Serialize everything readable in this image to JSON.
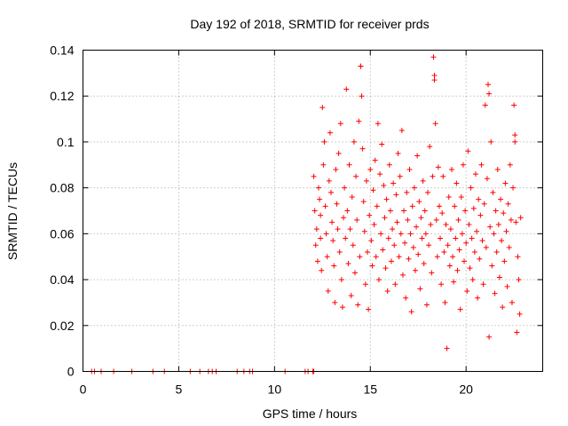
{
  "chart_data": {
    "type": "scatter",
    "title": "Day 192 of 2018, SRMTID for receiver prds",
    "xlabel": "GPS time / hours",
    "ylabel": "SRMTID / TECUs",
    "xlim": [
      0,
      24
    ],
    "ylim": [
      0,
      0.14
    ],
    "xticks": [
      0,
      5,
      10,
      15,
      20
    ],
    "xtick_labels": [
      "0",
      "5",
      "10",
      "15",
      "20"
    ],
    "yticks": [
      0,
      0.02,
      0.04,
      0.06,
      0.08,
      0.1,
      0.12,
      0.14
    ],
    "ytick_labels": [
      "0",
      "0.02",
      "0.04",
      "0.06",
      "0.08",
      "0.1",
      "0.12",
      "0.14"
    ],
    "grid": true,
    "marker": "+",
    "color": "#ff0000",
    "series": [
      {
        "name": "SRMTID",
        "points": [
          [
            0.45,
            0
          ],
          [
            0.6,
            0
          ],
          [
            0.95,
            0
          ],
          [
            1.6,
            0
          ],
          [
            2.55,
            0
          ],
          [
            3.65,
            0
          ],
          [
            4.25,
            0
          ],
          [
            5.6,
            0
          ],
          [
            6.1,
            0
          ],
          [
            6.55,
            0
          ],
          [
            6.75,
            0
          ],
          [
            6.95,
            0
          ],
          [
            8.05,
            0
          ],
          [
            8.4,
            0
          ],
          [
            8.7,
            0
          ],
          [
            8.85,
            0
          ],
          [
            10.55,
            0
          ],
          [
            11.6,
            0
          ],
          [
            11.75,
            0
          ],
          [
            12.0,
            0
          ],
          [
            12.05,
            0
          ],
          [
            12.05,
            0.085
          ],
          [
            12.1,
            0.07
          ],
          [
            12.15,
            0.055
          ],
          [
            12.2,
            0.062
          ],
          [
            12.25,
            0.048
          ],
          [
            12.3,
            0.08
          ],
          [
            12.35,
            0.075
          ],
          [
            12.4,
            0.068
          ],
          [
            12.4,
            0.058
          ],
          [
            12.45,
            0.044
          ],
          [
            12.5,
            0.115
          ],
          [
            12.55,
            0.09
          ],
          [
            12.6,
            0.1
          ],
          [
            12.65,
            0.072
          ],
          [
            12.7,
            0.06
          ],
          [
            12.75,
            0.05
          ],
          [
            12.8,
            0.035
          ],
          [
            12.85,
            0.083
          ],
          [
            12.9,
            0.104
          ],
          [
            12.95,
            0.078
          ],
          [
            13.0,
            0.065
          ],
          [
            13.05,
            0.057
          ],
          [
            13.1,
            0.046
          ],
          [
            13.15,
            0.03
          ],
          [
            13.2,
            0.088
          ],
          [
            13.25,
            0.073
          ],
          [
            13.3,
            0.062
          ],
          [
            13.35,
            0.095
          ],
          [
            13.4,
            0.052
          ],
          [
            13.45,
            0.108
          ],
          [
            13.5,
            0.04
          ],
          [
            13.55,
            0.028
          ],
          [
            13.6,
            0.067
          ],
          [
            13.65,
            0.08
          ],
          [
            13.7,
            0.058
          ],
          [
            13.75,
            0.123
          ],
          [
            13.8,
            0.07
          ],
          [
            13.85,
            0.047
          ],
          [
            13.9,
            0.09
          ],
          [
            13.95,
            0.062
          ],
          [
            14.0,
            0.033
          ],
          [
            14.05,
            0.076
          ],
          [
            14.1,
            0.055
          ],
          [
            14.15,
            0.1
          ],
          [
            14.2,
            0.043
          ],
          [
            14.25,
            0.085
          ],
          [
            14.3,
            0.066
          ],
          [
            14.35,
            0.029
          ],
          [
            14.4,
            0.109
          ],
          [
            14.45,
            0.05
          ],
          [
            14.5,
            0.133
          ],
          [
            14.5,
            0.133
          ],
          [
            14.55,
            0.12
          ],
          [
            14.6,
            0.097
          ],
          [
            14.65,
            0.074
          ],
          [
            14.7,
            0.061
          ],
          [
            14.75,
            0.038
          ],
          [
            14.8,
            0.083
          ],
          [
            14.85,
            0.052
          ],
          [
            14.9,
            0.027
          ],
          [
            14.95,
            0.068
          ],
          [
            15.0,
            0.088
          ],
          [
            15.05,
            0.057
          ],
          [
            15.1,
            0.046
          ],
          [
            15.15,
            0.079
          ],
          [
            15.2,
            0.064
          ],
          [
            15.25,
            0.092
          ],
          [
            15.3,
            0.05
          ],
          [
            15.35,
            0.072
          ],
          [
            15.4,
            0.108
          ],
          [
            15.45,
            0.04
          ],
          [
            15.5,
            0.086
          ],
          [
            15.55,
            0.06
          ],
          [
            15.6,
            0.099
          ],
          [
            15.65,
            0.053
          ],
          [
            15.7,
            0.081
          ],
          [
            15.75,
            0.067
          ],
          [
            15.8,
            0.045
          ],
          [
            15.85,
            0.075
          ],
          [
            15.9,
            0.035
          ],
          [
            15.95,
            0.058
          ],
          [
            16.0,
            0.09
          ],
          [
            16.05,
            0.07
          ],
          [
            16.1,
            0.048
          ],
          [
            16.15,
            0.062
          ],
          [
            16.2,
            0.082
          ],
          [
            16.25,
            0.055
          ],
          [
            16.3,
            0.038
          ],
          [
            16.35,
            0.077
          ],
          [
            16.4,
            0.065
          ],
          [
            16.45,
            0.095
          ],
          [
            16.5,
            0.05
          ],
          [
            16.55,
            0.085
          ],
          [
            16.6,
            0.06
          ],
          [
            16.65,
            0.105
          ],
          [
            16.7,
            0.042
          ],
          [
            16.75,
            0.07
          ],
          [
            16.8,
            0.056
          ],
          [
            16.85,
            0.032
          ],
          [
            16.9,
            0.078
          ],
          [
            16.95,
            0.066
          ],
          [
            17.0,
            0.049
          ],
          [
            17.05,
            0.088
          ],
          [
            17.1,
            0.06
          ],
          [
            17.15,
            0.026
          ],
          [
            17.2,
            0.072
          ],
          [
            17.25,
            0.054
          ],
          [
            17.3,
            0.08
          ],
          [
            17.35,
            0.044
          ],
          [
            17.4,
            0.063
          ],
          [
            17.45,
            0.094
          ],
          [
            17.5,
            0.051
          ],
          [
            17.55,
            0.074
          ],
          [
            17.6,
            0.036
          ],
          [
            17.65,
            0.067
          ],
          [
            17.7,
            0.058
          ],
          [
            17.75,
            0.083
          ],
          [
            17.8,
            0.047
          ],
          [
            17.85,
            0.07
          ],
          [
            17.9,
            0.06
          ],
          [
            17.95,
            0.029
          ],
          [
            18.0,
            0.078
          ],
          [
            18.05,
            0.055
          ],
          [
            18.1,
            0.098
          ],
          [
            18.15,
            0.064
          ],
          [
            18.2,
            0.043
          ],
          [
            18.25,
            0.085
          ],
          [
            18.3,
            0.137
          ],
          [
            18.35,
            0.129
          ],
          [
            18.35,
            0.127
          ],
          [
            18.4,
            0.108
          ],
          [
            18.45,
            0.066
          ],
          [
            18.5,
            0.05
          ],
          [
            18.55,
            0.089
          ],
          [
            18.6,
            0.072
          ],
          [
            18.65,
            0.058
          ],
          [
            18.7,
            0.038
          ],
          [
            18.75,
            0.069
          ],
          [
            18.8,
            0.085
          ],
          [
            18.85,
            0.052
          ],
          [
            18.9,
            0.03
          ],
          [
            18.95,
            0.064
          ],
          [
            19.0,
            0.01
          ],
          [
            19.05,
            0.055
          ],
          [
            19.1,
            0.076
          ],
          [
            19.15,
            0.046
          ],
          [
            19.2,
            0.062
          ],
          [
            19.25,
            0.088
          ],
          [
            19.3,
            0.05
          ],
          [
            19.35,
            0.039
          ],
          [
            19.4,
            0.072
          ],
          [
            19.45,
            0.058
          ],
          [
            19.5,
            0.082
          ],
          [
            19.55,
            0.044
          ],
          [
            19.6,
            0.066
          ],
          [
            19.65,
            0.053
          ],
          [
            19.7,
            0.027
          ],
          [
            19.75,
            0.076
          ],
          [
            19.8,
            0.06
          ],
          [
            19.85,
            0.09
          ],
          [
            19.9,
            0.048
          ],
          [
            19.95,
            0.07
          ],
          [
            20.0,
            0.056
          ],
          [
            20.05,
            0.035
          ],
          [
            20.1,
            0.096
          ],
          [
            20.15,
            0.064
          ],
          [
            20.2,
            0.045
          ],
          [
            20.25,
            0.08
          ],
          [
            20.3,
            0.058
          ],
          [
            20.35,
            0.04
          ],
          [
            20.4,
            0.071
          ],
          [
            20.45,
            0.052
          ],
          [
            20.5,
            0.086
          ],
          [
            20.55,
            0.061
          ],
          [
            20.6,
            0.032
          ],
          [
            20.65,
            0.075
          ],
          [
            20.7,
            0.049
          ],
          [
            20.75,
            0.068
          ],
          [
            20.8,
            0.09
          ],
          [
            20.85,
            0.057
          ],
          [
            20.9,
            0.038
          ],
          [
            20.95,
            0.073
          ],
          [
            21.0,
            0.116
          ],
          [
            21.05,
            0.054
          ],
          [
            21.1,
            0.084
          ],
          [
            21.15,
            0.125
          ],
          [
            21.2,
            0.121
          ],
          [
            21.2,
            0.015
          ],
          [
            21.25,
            0.063
          ],
          [
            21.3,
            0.1
          ],
          [
            21.35,
            0.046
          ],
          [
            21.4,
            0.078
          ],
          [
            21.45,
            0.06
          ],
          [
            21.5,
            0.034
          ],
          [
            21.55,
            0.07
          ],
          [
            21.6,
            0.052
          ],
          [
            21.65,
            0.088
          ],
          [
            21.7,
            0.064
          ],
          [
            21.75,
            0.041
          ],
          [
            21.8,
            0.075
          ],
          [
            21.85,
            0.057
          ],
          [
            21.9,
            0.028
          ],
          [
            21.95,
            0.069
          ],
          [
            22.0,
            0.048
          ],
          [
            22.05,
            0.082
          ],
          [
            22.1,
            0.061
          ],
          [
            22.15,
            0.037
          ],
          [
            22.2,
            0.073
          ],
          [
            22.25,
            0.054
          ],
          [
            22.3,
            0.09
          ],
          [
            22.35,
            0.066
          ],
          [
            22.4,
            0.03
          ],
          [
            22.45,
            0.08
          ],
          [
            22.5,
            0.116
          ],
          [
            22.55,
            0.1
          ],
          [
            22.55,
            0.103
          ],
          [
            22.6,
            0.065
          ],
          [
            22.65,
            0.017
          ],
          [
            22.7,
            0.05
          ],
          [
            22.75,
            0.04
          ],
          [
            22.8,
            0.025
          ],
          [
            22.85,
            0.067
          ]
        ]
      }
    ]
  }
}
